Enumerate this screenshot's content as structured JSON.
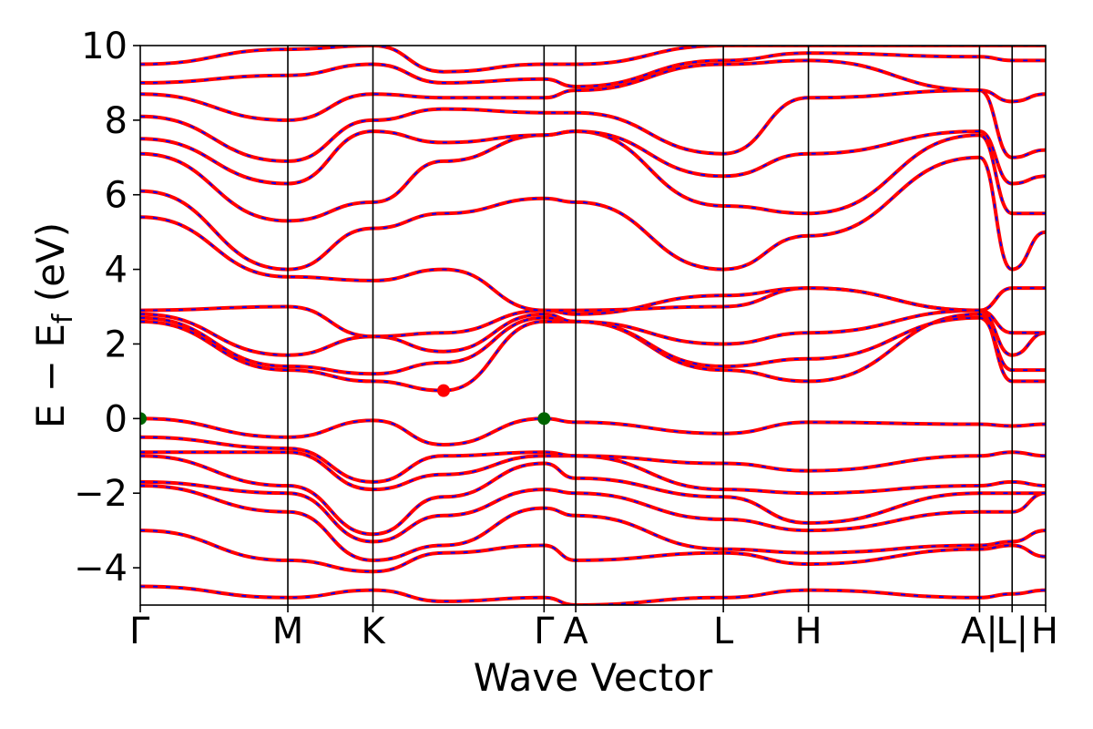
{
  "chart_data": {
    "type": "line",
    "xlabel": "Wave Vector",
    "ylabel": "E − E",
    "ylabel_sub": "f",
    "ylabel_unit": " (eV)",
    "ylim": [
      -5,
      10
    ],
    "yticks": [
      -4,
      -2,
      0,
      2,
      4,
      6,
      8,
      10
    ],
    "ytick_labels": [
      "−4",
      "−2",
      "0",
      "2",
      "4",
      "6",
      "8",
      "10"
    ],
    "xlim": [
      0,
      1
    ],
    "kpath": [
      {
        "label": "Γ",
        "x": 0.0
      },
      {
        "label": "M",
        "x": 0.163
      },
      {
        "label": "K",
        "x": 0.257
      },
      {
        "label": "Γ",
        "x": 0.446
      },
      {
        "label": "A",
        "x": 0.481
      },
      {
        "label": "L",
        "x": 0.644
      },
      {
        "label": "H",
        "x": 0.738
      },
      {
        "label": "A|",
        "x": 0.927
      },
      {
        "label": "L|",
        "x": 0.963
      },
      {
        "label": "H",
        "x": 1.0
      }
    ],
    "colors": {
      "band_main": "#ff0000",
      "band_overlay": "#0000ff",
      "vbm": "#006400",
      "cbm": "#ff0000"
    },
    "markers": [
      {
        "name": "VBM",
        "x": 0.0,
        "y": 0.0,
        "color": "#006400"
      },
      {
        "name": "VBM",
        "x": 0.446,
        "y": 0.0,
        "color": "#006400"
      },
      {
        "name": "CBM",
        "x": 0.335,
        "y": 0.75,
        "color": "#ff0000"
      }
    ],
    "bands_x": [
      0.0,
      0.163,
      0.257,
      0.335,
      0.446,
      0.481,
      0.644,
      0.738,
      0.927,
      0.963,
      1.0
    ],
    "bands": [
      [
        -4.5,
        -4.8,
        -4.6,
        -4.9,
        -4.8,
        -5.0,
        -4.8,
        -4.6,
        -4.8,
        -4.7,
        -4.6
      ],
      [
        -3.0,
        -3.8,
        -4.1,
        -3.6,
        -3.4,
        -3.8,
        -3.6,
        -3.9,
        -3.5,
        -3.4,
        -3.7
      ],
      [
        -1.8,
        -2.5,
        -3.8,
        -3.4,
        -2.4,
        -2.6,
        -3.5,
        -3.6,
        -3.4,
        -3.3,
        -3.0
      ],
      [
        -1.7,
        -2.0,
        -3.3,
        -2.6,
        -1.9,
        -2.0,
        -2.7,
        -3.0,
        -2.5,
        -2.5,
        -2.0
      ],
      [
        -1.0,
        -1.8,
        -3.1,
        -2.1,
        -1.2,
        -1.6,
        -2.1,
        -2.8,
        -2.0,
        -2.0,
        -2.0
      ],
      [
        -0.9,
        -0.9,
        -1.9,
        -1.5,
        -1.0,
        -1.0,
        -1.9,
        -2.0,
        -1.8,
        -1.7,
        -1.8
      ],
      [
        -0.5,
        -0.8,
        -1.7,
        -1.0,
        -0.9,
        -1.0,
        -1.2,
        -1.4,
        -1.0,
        -0.9,
        -1.0
      ],
      [
        0.0,
        -0.5,
        -0.05,
        -0.7,
        0.0,
        -0.1,
        -0.4,
        -0.1,
        -0.15,
        -0.2,
        -0.15
      ],
      [
        2.6,
        1.3,
        1.0,
        0.75,
        2.6,
        2.6,
        1.3,
        1.0,
        2.8,
        1.0,
        1.0
      ],
      [
        2.7,
        1.4,
        1.2,
        1.5,
        2.7,
        2.6,
        1.4,
        1.6,
        2.7,
        1.3,
        1.3
      ],
      [
        2.8,
        1.7,
        2.2,
        1.8,
        2.8,
        2.6,
        2.0,
        2.3,
        2.9,
        1.7,
        2.3
      ],
      [
        2.9,
        3.0,
        2.2,
        2.3,
        2.9,
        2.8,
        3.3,
        3.5,
        2.9,
        2.3,
        2.3
      ],
      [
        5.4,
        3.8,
        3.7,
        4.0,
        2.9,
        2.9,
        3.0,
        3.5,
        2.9,
        3.5,
        3.5
      ],
      [
        6.1,
        4.0,
        5.1,
        5.5,
        5.9,
        5.8,
        4.0,
        4.9,
        7.0,
        4.0,
        5.0
      ],
      [
        7.1,
        5.3,
        5.8,
        6.9,
        7.6,
        7.7,
        5.7,
        5.5,
        7.6,
        5.5,
        5.5
      ],
      [
        7.5,
        6.3,
        7.7,
        7.4,
        7.6,
        7.7,
        6.5,
        7.1,
        7.7,
        6.3,
        6.5
      ],
      [
        8.1,
        6.9,
        8.0,
        8.3,
        8.2,
        8.2,
        7.1,
        8.6,
        8.8,
        7.0,
        7.2
      ],
      [
        8.7,
        8.0,
        8.7,
        8.6,
        8.6,
        8.8,
        9.5,
        9.6,
        8.8,
        8.5,
        8.7
      ],
      [
        9.0,
        9.2,
        9.5,
        9.0,
        9.1,
        8.9,
        9.6,
        9.8,
        9.7,
        9.6,
        9.6
      ],
      [
        9.5,
        9.9,
        10.0,
        9.3,
        9.5,
        9.5,
        10.0,
        10.0,
        10.0,
        10.0,
        10.0
      ]
    ]
  }
}
